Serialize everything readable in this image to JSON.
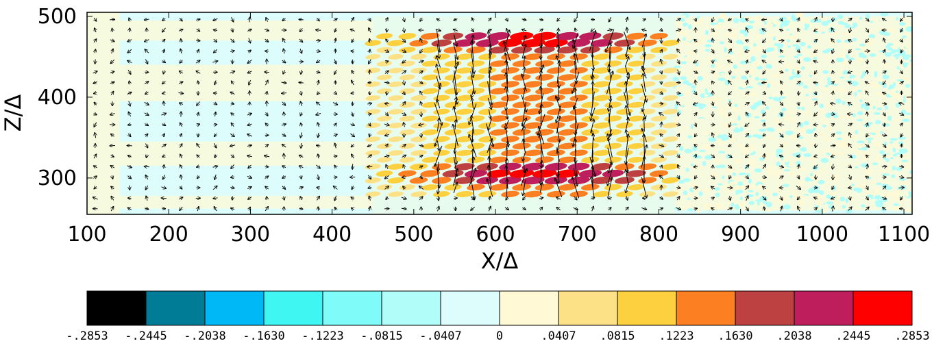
{
  "chart_data": {
    "type": "heatmap",
    "title": "",
    "xlabel": "X/Δ",
    "ylabel": "Z/Δ",
    "xlim": [
      100,
      1110
    ],
    "ylim": [
      255,
      505
    ],
    "x_ticks": [
      "100",
      "200",
      "300",
      "400",
      "500",
      "600",
      "700",
      "800",
      "900",
      "1000",
      "1100"
    ],
    "x_tick_values": [
      100,
      200,
      300,
      400,
      500,
      600,
      700,
      800,
      900,
      1000,
      1100
    ],
    "y_ticks": [
      "500",
      "400",
      "300"
    ],
    "y_tick_values": [
      500,
      400,
      300
    ],
    "active_region": {
      "x_start": 450,
      "x_end": 820,
      "z_start": 280,
      "z_end": 480
    },
    "vectors": "velocity arrows on regular grid",
    "colorbar": {
      "labels": [
        "-.2853",
        "-.2445",
        "-.2038",
        "-.1630",
        "-.1223",
        "-.0815",
        "-.0407",
        "0",
        ".0407",
        ".0815",
        ".1223",
        ".1630",
        ".2038",
        ".2445",
        ".2853"
      ],
      "levels": [
        -0.2853,
        -0.2445,
        -0.2038,
        -0.163,
        -0.1223,
        -0.0815,
        -0.0407,
        0,
        0.0407,
        0.0815,
        0.1223,
        0.163,
        0.2038,
        0.2445,
        0.2853
      ],
      "colors": [
        "#000000",
        "#017c97",
        "#00b8f6",
        "#3ff6f2",
        "#7ffbf9",
        "#b1fdfa",
        "#dcfdfb",
        "#fffad5",
        "#fde186",
        "#fdd040",
        "#fc8022",
        "#bd4141",
        "#be1f5c",
        "#fe0000"
      ]
    }
  }
}
